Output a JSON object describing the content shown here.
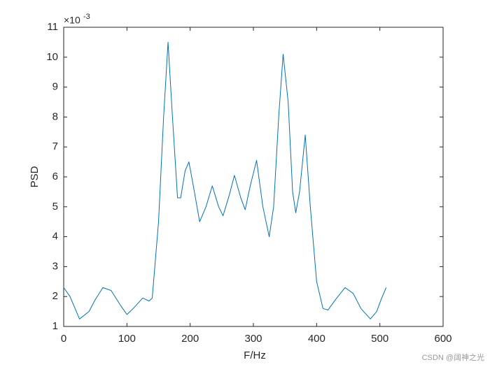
{
  "chart_data": {
    "type": "line",
    "xlabel": "F/Hz",
    "ylabel": "PSD",
    "y_exponent_base": "×10",
    "y_exponent": "-3",
    "watermark": "CSDN @阔神之光",
    "x": [
      0,
      10,
      25,
      40,
      50,
      62,
      75,
      90,
      100,
      110,
      125,
      135,
      140,
      150,
      158,
      165,
      172,
      180,
      185,
      192,
      198,
      205,
      215,
      225,
      235,
      245,
      252,
      262,
      270,
      280,
      287,
      295,
      305,
      315,
      325,
      332,
      340,
      347,
      355,
      362,
      367,
      373,
      382,
      390,
      400,
      410,
      418,
      430,
      445,
      458,
      470,
      485,
      495,
      502,
      510
    ],
    "values": [
      2.3,
      2.0,
      1.25,
      1.5,
      1.9,
      2.3,
      2.2,
      1.7,
      1.4,
      1.6,
      1.95,
      1.85,
      1.95,
      4.5,
      8,
      10.5,
      8,
      5.3,
      5.3,
      6.2,
      6.5,
      5.7,
      4.5,
      5.0,
      5.7,
      5.0,
      4.7,
      5.4,
      6.05,
      5.3,
      4.9,
      5.7,
      6.55,
      5.0,
      4.0,
      5.0,
      8,
      10.1,
      8.5,
      5.5,
      4.8,
      5.5,
      7.4,
      5,
      2.5,
      1.6,
      1.55,
      1.9,
      2.3,
      2.1,
      1.6,
      1.25,
      1.5,
      1.9,
      2.3
    ],
    "color": "#0072BD",
    "xlim": [
      0,
      600
    ],
    "xticks": [
      0,
      100,
      200,
      300,
      400,
      500,
      600
    ],
    "ylim": [
      1,
      11
    ],
    "yticks": [
      1,
      2,
      3,
      4,
      5,
      6,
      7,
      8,
      9,
      10,
      11
    ]
  }
}
